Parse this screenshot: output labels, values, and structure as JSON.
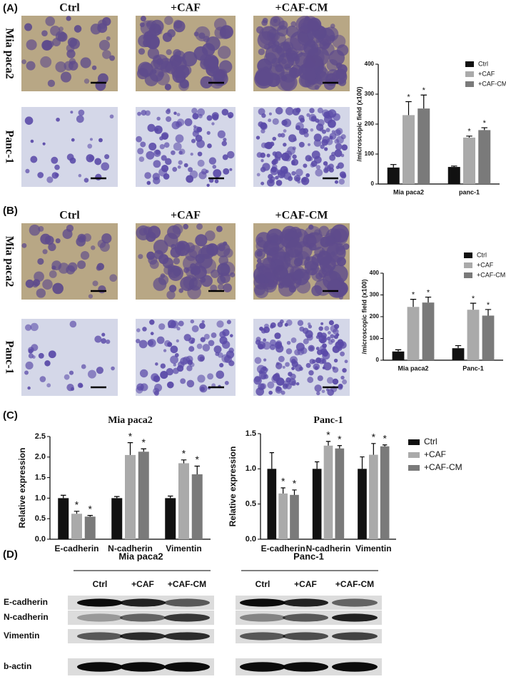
{
  "panels": {
    "A": {
      "label": "(A)",
      "columns": [
        "Ctrl",
        "+CAF",
        "+CAF-CM"
      ],
      "rows": [
        "Mia paca2",
        "Panc-1"
      ]
    },
    "B": {
      "label": "(B)",
      "columns": [
        "Ctrl",
        "+CAF",
        "+CAF-CM"
      ],
      "rows": [
        "Mia paca2",
        "Panc-1"
      ]
    },
    "C": {
      "label": "(C)"
    }
  },
  "chart_data": [
    {
      "type": "bar",
      "y_label": "/microscopic field (x100)",
      "categories": [
        "Mia paca2",
        "panc-1"
      ],
      "ylim": [
        0,
        400
      ],
      "yticks": [
        0,
        100,
        200,
        300,
        400
      ],
      "legend": "top-right",
      "series": [
        {
          "name": "Ctrl",
          "color": "#111111",
          "values": [
            55,
            57
          ],
          "errors": [
            10,
            3
          ]
        },
        {
          "name": "+CAF",
          "color": "#aaaaaa",
          "values": [
            230,
            155
          ],
          "errors": [
            45,
            5
          ],
          "sig": [
            "*",
            "*"
          ]
        },
        {
          "name": "+CAF-CM",
          "color": "#7a7a7a",
          "values": [
            252,
            180
          ],
          "errors": [
            45,
            8
          ],
          "sig": [
            "*",
            "*"
          ]
        }
      ]
    },
    {
      "type": "bar",
      "y_label": "/microscopic field (x100)",
      "categories": [
        "Mia paca2",
        "Panc-1"
      ],
      "ylim": [
        0,
        400
      ],
      "yticks": [
        0,
        100,
        200,
        300,
        400
      ],
      "legend": "top-right",
      "series": [
        {
          "name": "Ctrl",
          "color": "#111111",
          "values": [
            40,
            55
          ],
          "errors": [
            8,
            12
          ]
        },
        {
          "name": "+CAF",
          "color": "#aaaaaa",
          "values": [
            245,
            232
          ],
          "errors": [
            35,
            30
          ],
          "sig": [
            "*",
            "*"
          ]
        },
        {
          "name": "+CAF-CM",
          "color": "#7a7a7a",
          "values": [
            265,
            205
          ],
          "errors": [
            25,
            28
          ],
          "sig": [
            "*",
            "*"
          ]
        }
      ]
    },
    {
      "type": "bar",
      "title": "Mia paca2",
      "y_label": "Relative expression",
      "categories": [
        "E-cadherin",
        "N-cadherin",
        "Vimentin"
      ],
      "ylim": [
        0,
        2.5
      ],
      "yticks": [
        {
          "value": 0,
          "label": "0.0"
        },
        0.5,
        {
          "value": 1,
          "label": "1.0"
        },
        1.5,
        {
          "value": 2,
          "label": "2.0"
        },
        2.5
      ],
      "series": [
        {
          "color": "#111111",
          "values": [
            1.0,
            1.0,
            1.0
          ],
          "errors": [
            0.07,
            0.04,
            0.05
          ]
        },
        {
          "color": "#aaaaaa",
          "values": [
            0.62,
            2.05,
            1.85
          ],
          "errors": [
            0.06,
            0.3,
            0.08
          ],
          "sig": [
            "*",
            "*",
            "*"
          ]
        },
        {
          "color": "#7a7a7a",
          "values": [
            0.55,
            2.13,
            1.58
          ],
          "errors": [
            0.03,
            0.07,
            0.2
          ],
          "sig": [
            "*",
            "*",
            "*"
          ]
        }
      ]
    },
    {
      "type": "bar",
      "title": "Panc-1",
      "y_label": "Relative expression",
      "categories": [
        "E-cadherin",
        "N-cadherin",
        "Vimentin"
      ],
      "ylim": [
        0,
        1.5
      ],
      "yticks": [
        {
          "value": 0,
          "label": "0.0"
        },
        0.5,
        {
          "value": 1,
          "label": "1.0"
        },
        1.5
      ],
      "legend": "right",
      "series": [
        {
          "name": "Ctrl",
          "color": "#111111",
          "values": [
            1.0,
            1.0,
            1.0
          ],
          "errors": [
            0.23,
            0.1,
            0.17
          ]
        },
        {
          "name": "+CAF",
          "color": "#aaaaaa",
          "values": [
            0.65,
            1.33,
            1.2
          ],
          "errors": [
            0.08,
            0.06,
            0.16
          ],
          "sig": [
            "*",
            "*",
            "*"
          ]
        },
        {
          "name": "+CAF-CM",
          "color": "#7a7a7a",
          "values": [
            0.63,
            1.29,
            1.32
          ],
          "errors": [
            0.07,
            0.04,
            0.02
          ],
          "sig": [
            "*",
            "*",
            "*"
          ]
        }
      ]
    }
  ],
  "blot": {
    "label": "(D)",
    "groups": [
      {
        "title": "Mia paca2",
        "lanes": [
          "Ctrl",
          "+CAF",
          "+CAF-CM"
        ]
      },
      {
        "title": "Panc-1",
        "lanes": [
          "Ctrl",
          "+CAF",
          "+CAF-CM"
        ]
      }
    ],
    "rows": [
      "E-cadherin",
      "N-cadherin",
      "Vimentin",
      "b-actin"
    ]
  }
}
